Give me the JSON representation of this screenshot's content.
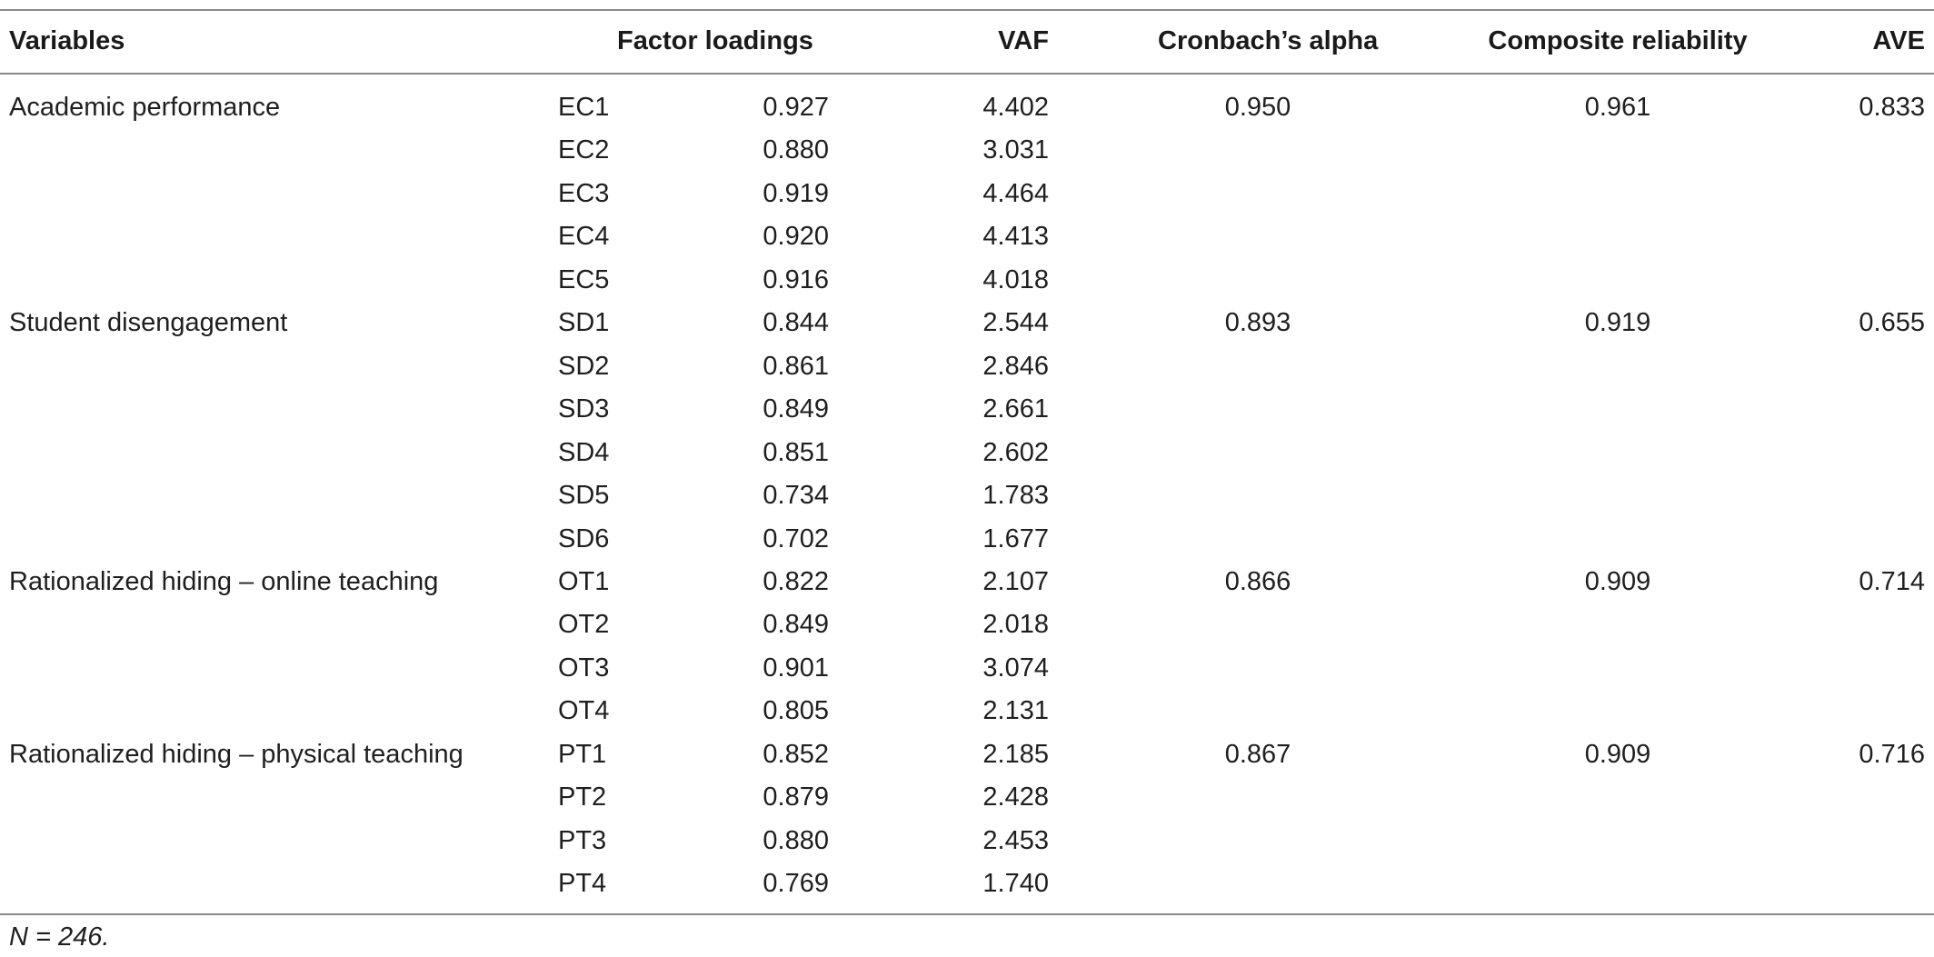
{
  "table": {
    "headers": {
      "variables": "Variables",
      "factor_loadings": "Factor loadings",
      "vaf": "VAF",
      "cronbach": "Cronbach’s alpha",
      "composite": "Composite reliability",
      "ave": "AVE"
    },
    "rows": [
      {
        "variable": "Academic performance",
        "item": "EC1",
        "loading": "0.927",
        "vaf": "4.402",
        "cronbach": "0.950",
        "composite": "0.961",
        "ave": "0.833"
      },
      {
        "variable": "",
        "item": "EC2",
        "loading": "0.880",
        "vaf": "3.031",
        "cronbach": "",
        "composite": "",
        "ave": ""
      },
      {
        "variable": "",
        "item": "EC3",
        "loading": "0.919",
        "vaf": "4.464",
        "cronbach": "",
        "composite": "",
        "ave": ""
      },
      {
        "variable": "",
        "item": "EC4",
        "loading": "0.920",
        "vaf": "4.413",
        "cronbach": "",
        "composite": "",
        "ave": ""
      },
      {
        "variable": "",
        "item": "EC5",
        "loading": "0.916",
        "vaf": "4.018",
        "cronbach": "",
        "composite": "",
        "ave": ""
      },
      {
        "variable": "Student disengagement",
        "item": "SD1",
        "loading": "0.844",
        "vaf": "2.544",
        "cronbach": "0.893",
        "composite": "0.919",
        "ave": "0.655"
      },
      {
        "variable": "",
        "item": "SD2",
        "loading": "0.861",
        "vaf": "2.846",
        "cronbach": "",
        "composite": "",
        "ave": ""
      },
      {
        "variable": "",
        "item": "SD3",
        "loading": "0.849",
        "vaf": "2.661",
        "cronbach": "",
        "composite": "",
        "ave": ""
      },
      {
        "variable": "",
        "item": "SD4",
        "loading": "0.851",
        "vaf": "2.602",
        "cronbach": "",
        "composite": "",
        "ave": ""
      },
      {
        "variable": "",
        "item": "SD5",
        "loading": "0.734",
        "vaf": "1.783",
        "cronbach": "",
        "composite": "",
        "ave": ""
      },
      {
        "variable": "",
        "item": "SD6",
        "loading": "0.702",
        "vaf": "1.677",
        "cronbach": "",
        "composite": "",
        "ave": ""
      },
      {
        "variable": "Rationalized hiding – online teaching",
        "item": "OT1",
        "loading": "0.822",
        "vaf": "2.107",
        "cronbach": "0.866",
        "composite": "0.909",
        "ave": "0.714"
      },
      {
        "variable": "",
        "item": "OT2",
        "loading": "0.849",
        "vaf": "2.018",
        "cronbach": "",
        "composite": "",
        "ave": ""
      },
      {
        "variable": "",
        "item": "OT3",
        "loading": "0.901",
        "vaf": "3.074",
        "cronbach": "",
        "composite": "",
        "ave": ""
      },
      {
        "variable": "",
        "item": "OT4",
        "loading": "0.805",
        "vaf": "2.131",
        "cronbach": "",
        "composite": "",
        "ave": ""
      },
      {
        "variable": "Rationalized hiding – physical teaching",
        "item": "PT1",
        "loading": "0.852",
        "vaf": "2.185",
        "cronbach": "0.867",
        "composite": "0.909",
        "ave": "0.716"
      },
      {
        "variable": "",
        "item": "PT2",
        "loading": "0.879",
        "vaf": "2.428",
        "cronbach": "",
        "composite": "",
        "ave": ""
      },
      {
        "variable": "",
        "item": "PT3",
        "loading": "0.880",
        "vaf": "2.453",
        "cronbach": "",
        "composite": "",
        "ave": ""
      },
      {
        "variable": "",
        "item": "PT4",
        "loading": "0.769",
        "vaf": "1.740",
        "cronbach": "",
        "composite": "",
        "ave": ""
      }
    ],
    "footnote": "N = 246."
  },
  "colors": {
    "text": "#1f1f1f",
    "rule": "#8a8a8a"
  }
}
